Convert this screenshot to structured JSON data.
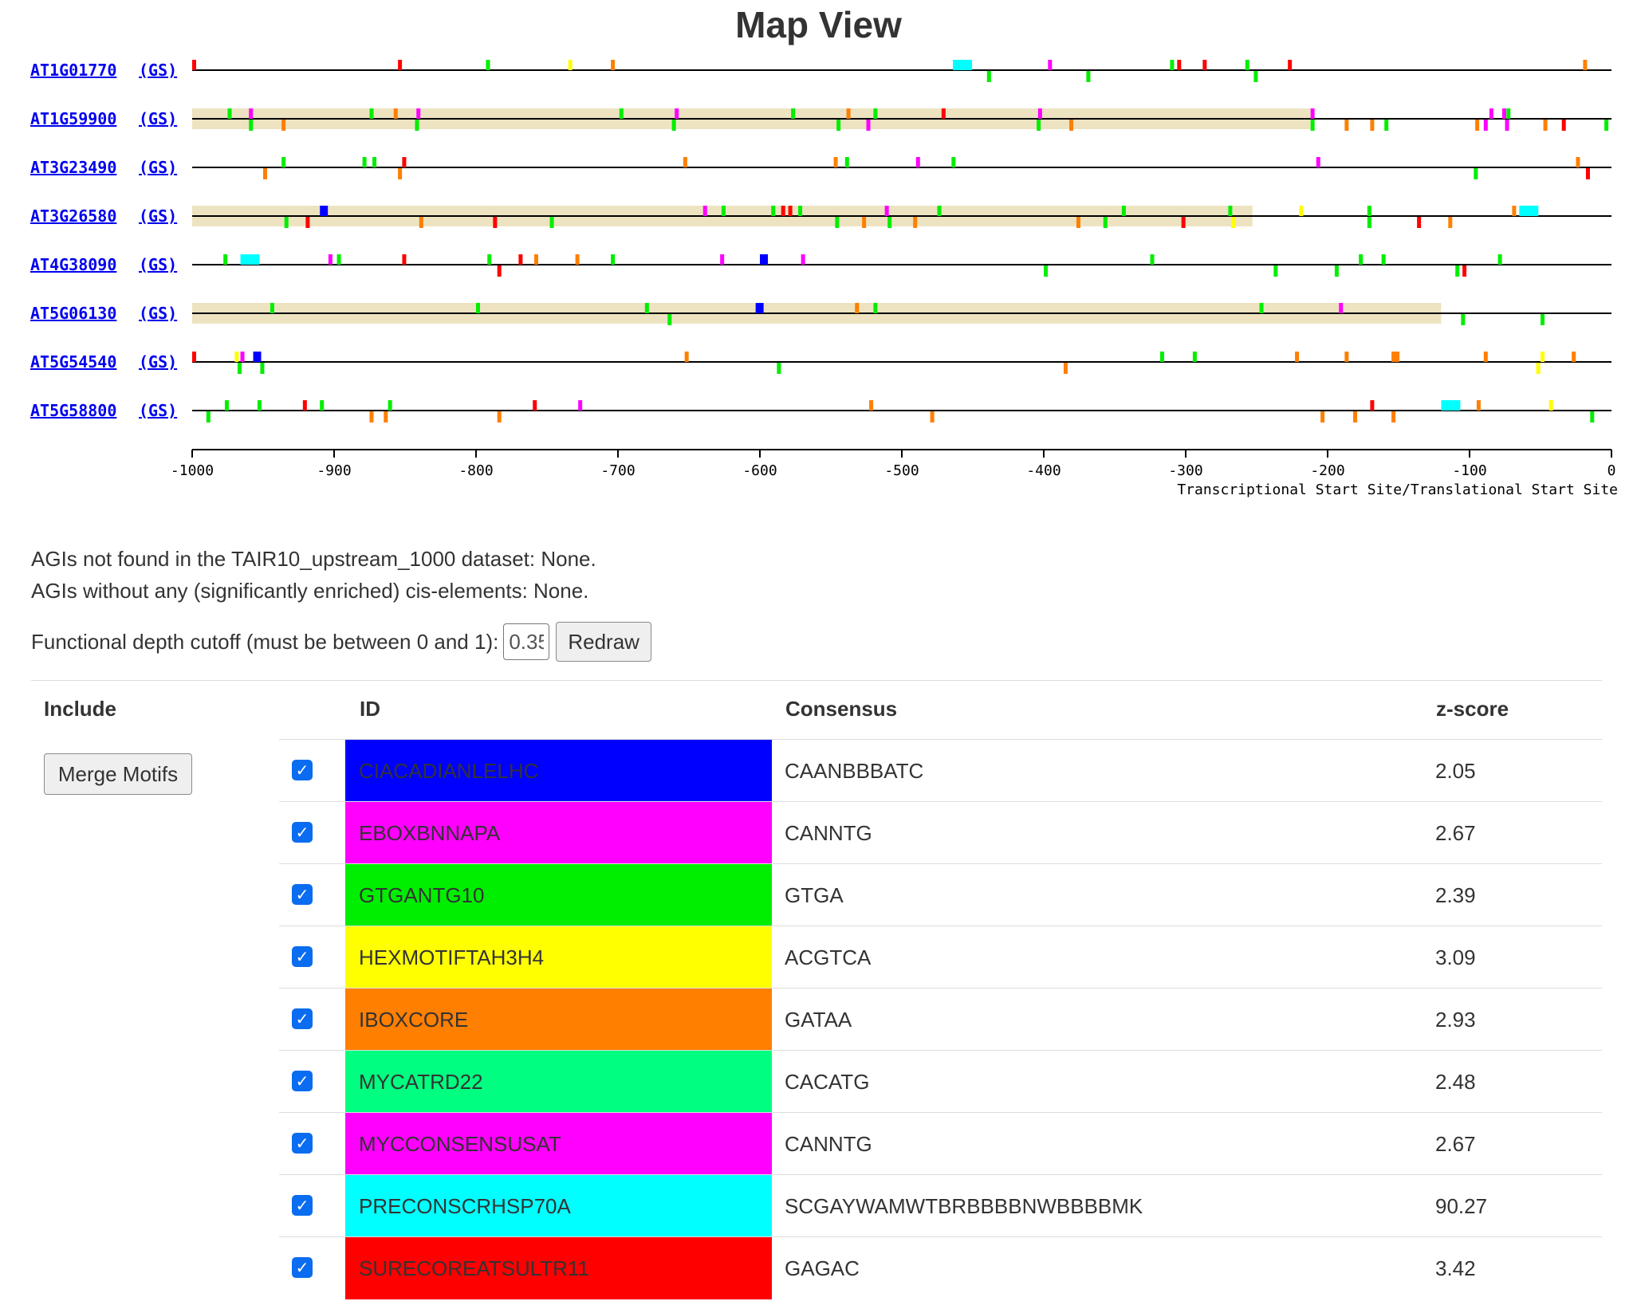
{
  "page": {
    "title": "Map View"
  },
  "map": {
    "genes": [
      {
        "agi": "AT1G01770",
        "gs": "(GS)",
        "highlight": null,
        "top": [
          [
            -1000,
            "red"
          ],
          [
            -855,
            "red"
          ],
          [
            -793,
            "green"
          ],
          [
            -735,
            "yellow"
          ],
          [
            -705,
            "orange"
          ],
          [
            -464,
            "cyan",
            24
          ],
          [
            -397,
            "magenta"
          ],
          [
            -311,
            "green"
          ],
          [
            -306,
            "red"
          ],
          [
            -288,
            "red"
          ],
          [
            -258,
            "green"
          ],
          [
            -228,
            "red"
          ],
          [
            -20,
            "orange"
          ]
        ],
        "bottom": [
          [
            -440,
            "green"
          ],
          [
            -370,
            "green"
          ],
          [
            -252,
            "green"
          ]
        ]
      },
      {
        "agi": "AT1G59900",
        "gs": "(GS)",
        "highlight": [
          -1000,
          -212
        ],
        "top": [
          [
            -975,
            "green"
          ],
          [
            -960,
            "magenta"
          ],
          [
            -875,
            "green"
          ],
          [
            -858,
            "orange"
          ],
          [
            -842,
            "magenta"
          ],
          [
            -699,
            "green"
          ],
          [
            -660,
            "magenta"
          ],
          [
            -578,
            "green"
          ],
          [
            -539,
            "orange"
          ],
          [
            -520,
            "green"
          ],
          [
            -472,
            "red"
          ],
          [
            -404,
            "magenta"
          ],
          [
            -212,
            "magenta"
          ],
          [
            -86,
            "magenta"
          ],
          [
            -77,
            "magenta"
          ],
          [
            -74,
            "green"
          ]
        ],
        "bottom": [
          [
            -960,
            "green"
          ],
          [
            -937,
            "orange"
          ],
          [
            -843,
            "green"
          ],
          [
            -662,
            "green"
          ],
          [
            -546,
            "green"
          ],
          [
            -525,
            "magenta"
          ],
          [
            -405,
            "green"
          ],
          [
            -382,
            "orange"
          ],
          [
            -212,
            "green"
          ],
          [
            -188,
            "orange"
          ],
          [
            -170,
            "orange"
          ],
          [
            -160,
            "green"
          ],
          [
            -96,
            "orange"
          ],
          [
            -90,
            "magenta"
          ],
          [
            -75,
            "magenta"
          ],
          [
            -48,
            "orange"
          ],
          [
            -35,
            "red"
          ],
          [
            -5,
            "green"
          ]
        ]
      },
      {
        "agi": "AT3G23490",
        "gs": "(GS)",
        "highlight": null,
        "top": [
          [
            -937,
            "green"
          ],
          [
            -880,
            "green"
          ],
          [
            -873,
            "green"
          ],
          [
            -852,
            "red"
          ],
          [
            -654,
            "orange"
          ],
          [
            -548,
            "orange"
          ],
          [
            -540,
            "green"
          ],
          [
            -490,
            "magenta"
          ],
          [
            -465,
            "green"
          ],
          [
            -208,
            "magenta"
          ],
          [
            -25,
            "orange"
          ]
        ],
        "bottom": [
          [
            -950,
            "orange"
          ],
          [
            -855,
            "orange"
          ],
          [
            -97,
            "green"
          ],
          [
            -18,
            "red"
          ]
        ]
      },
      {
        "agi": "AT3G26580",
        "gs": "(GS)",
        "highlight": [
          -1000,
          -253
        ],
        "top": [
          [
            -910,
            "blue",
            10
          ],
          [
            -640,
            "magenta"
          ],
          [
            -627,
            "green"
          ],
          [
            -592,
            "green"
          ],
          [
            -585,
            "red"
          ],
          [
            -580,
            "red"
          ],
          [
            -573,
            "green"
          ],
          [
            -512,
            "magenta"
          ],
          [
            -475,
            "green"
          ],
          [
            -345,
            "green"
          ],
          [
            -270,
            "green"
          ],
          [
            -220,
            "yellow"
          ],
          [
            -172,
            "green"
          ],
          [
            -70,
            "orange"
          ],
          [
            -65,
            "cyan",
            24
          ]
        ],
        "bottom": [
          [
            -935,
            "green"
          ],
          [
            -920,
            "red"
          ],
          [
            -840,
            "orange"
          ],
          [
            -788,
            "red"
          ],
          [
            -748,
            "green"
          ],
          [
            -547,
            "green"
          ],
          [
            -528,
            "orange"
          ],
          [
            -510,
            "green"
          ],
          [
            -492,
            "orange"
          ],
          [
            -377,
            "orange"
          ],
          [
            -358,
            "green"
          ],
          [
            -303,
            "red"
          ],
          [
            -268,
            "yellow"
          ],
          [
            -172,
            "green"
          ],
          [
            -137,
            "red"
          ],
          [
            -115,
            "orange"
          ]
        ]
      },
      {
        "agi": "AT4G38090",
        "gs": "(GS)",
        "highlight": null,
        "top": [
          [
            -978,
            "green"
          ],
          [
            -966,
            "cyan",
            24
          ],
          [
            -904,
            "magenta"
          ],
          [
            -898,
            "green"
          ],
          [
            -852,
            "red"
          ],
          [
            -792,
            "green"
          ],
          [
            -770,
            "red"
          ],
          [
            -759,
            "orange"
          ],
          [
            -730,
            "orange"
          ],
          [
            -705,
            "green"
          ],
          [
            -628,
            "magenta"
          ],
          [
            -600,
            "blue",
            10
          ],
          [
            -571,
            "magenta"
          ],
          [
            -325,
            "green"
          ],
          [
            -178,
            "green"
          ],
          [
            -162,
            "green"
          ],
          [
            -80,
            "green"
          ]
        ],
        "bottom": [
          [
            -785,
            "red"
          ],
          [
            -400,
            "green"
          ],
          [
            -238,
            "green"
          ],
          [
            -195,
            "green"
          ],
          [
            -110,
            "green"
          ],
          [
            -105,
            "red"
          ]
        ]
      },
      {
        "agi": "AT5G06130",
        "gs": "(GS)",
        "highlight": [
          -1000,
          -120
        ],
        "top": [
          [
            -945,
            "green"
          ],
          [
            -800,
            "green"
          ],
          [
            -681,
            "green"
          ],
          [
            -603,
            "blue",
            10
          ],
          [
            -533,
            "orange"
          ],
          [
            -520,
            "green"
          ],
          [
            -248,
            "green"
          ],
          [
            -192,
            "magenta"
          ]
        ],
        "bottom": [
          [
            -665,
            "green"
          ],
          [
            -106,
            "green"
          ],
          [
            -50,
            "green"
          ]
        ]
      },
      {
        "agi": "AT5G54540",
        "gs": "(GS)",
        "highlight": null,
        "top": [
          [
            -1000,
            "red"
          ],
          [
            -970,
            "yellow"
          ],
          [
            -966,
            "magenta"
          ],
          [
            -957,
            "blue",
            10
          ],
          [
            -653,
            "orange"
          ],
          [
            -318,
            "green"
          ],
          [
            -295,
            "green"
          ],
          [
            -223,
            "orange"
          ],
          [
            -188,
            "orange"
          ],
          [
            -155,
            "orange",
            10
          ],
          [
            -90,
            "orange"
          ],
          [
            -50,
            "yellow"
          ],
          [
            -28,
            "orange"
          ]
        ],
        "bottom": [
          [
            -968,
            "green"
          ],
          [
            -952,
            "green"
          ],
          [
            -588,
            "green"
          ],
          [
            -386,
            "orange"
          ],
          [
            -53,
            "yellow"
          ]
        ]
      },
      {
        "agi": "AT5G58800",
        "gs": "(GS)",
        "highlight": null,
        "top": [
          [
            -977,
            "green"
          ],
          [
            -954,
            "green"
          ],
          [
            -922,
            "red"
          ],
          [
            -910,
            "green"
          ],
          [
            -862,
            "green"
          ],
          [
            -760,
            "red"
          ],
          [
            -728,
            "magenta"
          ],
          [
            -523,
            "orange"
          ],
          [
            -170,
            "red"
          ],
          [
            -120,
            "cyan",
            24
          ],
          [
            -95,
            "orange"
          ],
          [
            -44,
            "yellow"
          ]
        ],
        "bottom": [
          [
            -990,
            "green"
          ],
          [
            -875,
            "orange"
          ],
          [
            -865,
            "orange"
          ],
          [
            -785,
            "orange"
          ],
          [
            -480,
            "orange"
          ],
          [
            -205,
            "orange"
          ],
          [
            -182,
            "orange"
          ],
          [
            -155,
            "orange"
          ],
          [
            -15,
            "green"
          ]
        ]
      }
    ],
    "axis": {
      "min": -1000,
      "max": 0,
      "ticks": [
        "-1000",
        "-900",
        "-800",
        "-700",
        "-600",
        "-500",
        "-400",
        "-300",
        "-200",
        "-100",
        "0"
      ],
      "caption": "Transcriptional Start Site/Translational Start Site"
    },
    "colors": {
      "blue": "#0000ff",
      "magenta": "#ff00ff",
      "green": "#00ee00",
      "yellow": "#ffff00",
      "orange": "#ff7f00",
      "cyan": "#00ffff",
      "red": "#ff0000",
      "highlight": "#ede3c0"
    }
  },
  "info": {
    "not_found": "AGIs not found in the TAIR10_upstream_1000 dataset: None.",
    "no_elements": "AGIs without any (significantly enriched) cis-elements: None."
  },
  "cutoff": {
    "label": "Functional depth cutoff (must be between 0 and 1):",
    "value": "0.35",
    "redraw_label": "Redraw"
  },
  "table": {
    "headers": {
      "include": "Include",
      "id": "ID",
      "consensus": "Consensus",
      "zscore": "z-score"
    },
    "merge_label": "Merge Motifs",
    "rows": [
      {
        "id": "CIACADIANLELHC",
        "consensus": "CAANBBBATC",
        "zscore": "2.05",
        "color": "#0000ff"
      },
      {
        "id": "EBOXBNNAPA",
        "consensus": "CANNTG",
        "zscore": "2.67",
        "color": "#ff00ff"
      },
      {
        "id": "GTGANTG10",
        "consensus": "GTGA",
        "zscore": "2.39",
        "color": "#00ee00"
      },
      {
        "id": "HEXMOTIFTAH3H4",
        "consensus": "ACGTCA",
        "zscore": "3.09",
        "color": "#ffff00"
      },
      {
        "id": "IBOXCORE",
        "consensus": "GATAA",
        "zscore": "2.93",
        "color": "#ff7f00"
      },
      {
        "id": "MYCATRD22",
        "consensus": "CACATG",
        "zscore": "2.48",
        "color": "#00ff80"
      },
      {
        "id": "MYCCONSENSUSAT",
        "consensus": "CANNTG",
        "zscore": "2.67",
        "color": "#ff00ff"
      },
      {
        "id": "PRECONSCRHSP70A",
        "consensus": "SCGAYWAMWTBRBBBBNWBBBBMK",
        "zscore": "90.27",
        "color": "#00ffff"
      },
      {
        "id": "SURECOREATSULTR11",
        "consensus": "GAGAC",
        "zscore": "3.42",
        "color": "#ff0000"
      }
    ]
  }
}
